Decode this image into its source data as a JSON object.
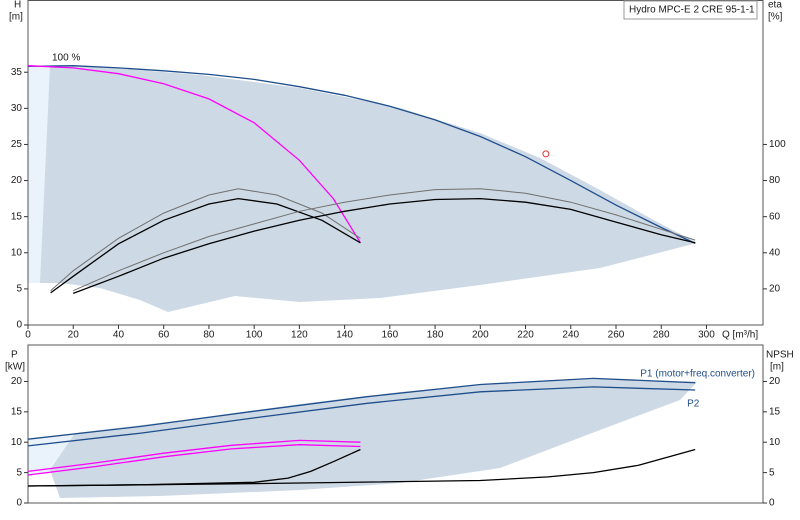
{
  "chart_data": [
    {
      "type": "line",
      "title": "Hydro MPC-E 2 CRE 95-1-1",
      "x_label": "Q [m³/h]",
      "y_label": "H",
      "y_unit": "[m]",
      "y2_label": "eta",
      "y2_unit": "[%]",
      "xlim": [
        0,
        325
      ],
      "xticks": [
        0,
        20,
        40,
        60,
        80,
        100,
        120,
        140,
        160,
        180,
        200,
        220,
        240,
        260,
        280,
        300
      ],
      "ylim": [
        0,
        45
      ],
      "yticks": [
        0,
        5,
        10,
        15,
        20,
        25,
        30,
        35
      ],
      "y2lim": [
        0,
        180
      ],
      "y2ticks": [
        20,
        40,
        60,
        80,
        100
      ],
      "grid": false,
      "annotations": [
        "100 %"
      ],
      "markers": [
        {
          "x": 229,
          "y": 23.7,
          "color": "#e03030"
        }
      ],
      "series": [
        {
          "color": "#1f4e8c",
          "x": [
            0,
            20,
            40,
            60,
            80,
            100,
            120,
            140,
            160,
            180,
            200,
            220,
            240,
            260,
            280,
            295
          ],
          "values": [
            35.8,
            35.9,
            35.6,
            35.2,
            34.7,
            34.0,
            33.0,
            31.8,
            30.3,
            28.4,
            26.1,
            23.3,
            20.0,
            16.6,
            13.5,
            11.3
          ]
        },
        {
          "color": "#ff00ff",
          "x": [
            0,
            20,
            40,
            60,
            80,
            100,
            120,
            135,
            147
          ],
          "values": [
            35.9,
            35.6,
            34.8,
            33.4,
            31.3,
            28.0,
            22.8,
            17.5,
            11.4
          ]
        },
        {
          "color": "#707070",
          "axis": "y2",
          "x": [
            10,
            20,
            40,
            60,
            80,
            93,
            110,
            130,
            147
          ],
          "values": [
            19,
            30,
            48,
            62,
            72,
            75.5,
            72,
            62,
            48
          ]
        },
        {
          "color": "#000000",
          "axis": "y2",
          "x": [
            10,
            20,
            40,
            60,
            80,
            93,
            110,
            130,
            147
          ],
          "values": [
            17.8,
            27,
            45,
            58,
            67,
            70,
            67,
            58,
            45.5
          ]
        },
        {
          "color": "#707070",
          "axis": "y2",
          "x": [
            20,
            40,
            60,
            80,
            100,
            120,
            140,
            160,
            180,
            200,
            220,
            240,
            260,
            280,
            295
          ],
          "values": [
            19,
            30,
            40,
            49,
            56,
            63,
            68,
            72,
            75,
            75.5,
            73,
            68,
            61,
            53,
            47
          ]
        },
        {
          "color": "#000000",
          "axis": "y2",
          "x": [
            20,
            40,
            60,
            80,
            100,
            120,
            140,
            160,
            180,
            200,
            220,
            240,
            260,
            280,
            295
          ],
          "values": [
            17.5,
            27,
            37,
            45,
            52,
            58,
            63,
            67,
            69.5,
            70,
            68,
            64,
            57,
            50,
            45.5
          ]
        }
      ]
    },
    {
      "type": "line",
      "y_label": "P",
      "y_unit": "[kW]",
      "y2_label": "NPSH",
      "y2_unit": "[m]",
      "xlim": [
        0,
        325
      ],
      "ylim": [
        0,
        26
      ],
      "yticks": [
        0,
        5,
        10,
        15,
        20
      ],
      "y2lim": [
        0,
        26
      ],
      "y2ticks": [
        0,
        5,
        10,
        15,
        20
      ],
      "grid": false,
      "series": [
        {
          "name": "P1 (motor+freq.converter)",
          "color": "#1f4e8c",
          "x": [
            0,
            50,
            100,
            150,
            200,
            250,
            295
          ],
          "values": [
            10.5,
            12.6,
            15.1,
            17.5,
            19.5,
            20.5,
            19.8
          ]
        },
        {
          "name": "P2",
          "color": "#1f4e8c",
          "x": [
            0,
            50,
            100,
            150,
            200,
            250,
            295
          ],
          "values": [
            9.4,
            11.5,
            14.0,
            16.4,
            18.3,
            19.1,
            18.6
          ]
        },
        {
          "color": "#ff00ff",
          "x": [
            0,
            30,
            60,
            90,
            120,
            147
          ],
          "values": [
            5.2,
            6.6,
            8.2,
            9.5,
            10.3,
            10.0
          ]
        },
        {
          "color": "#ff00ff",
          "x": [
            0,
            30,
            60,
            90,
            120,
            147
          ],
          "values": [
            4.6,
            6.0,
            7.6,
            8.9,
            9.6,
            9.3
          ]
        },
        {
          "color": "#000000",
          "axis": "y2",
          "x": [
            0,
            50,
            100,
            115,
            125,
            135,
            147
          ],
          "values": [
            2.8,
            3.0,
            3.4,
            4.1,
            5.2,
            6.8,
            8.8
          ]
        },
        {
          "color": "#000000",
          "axis": "y2",
          "x": [
            0,
            100,
            200,
            230,
            250,
            270,
            295
          ],
          "values": [
            2.8,
            3.2,
            3.7,
            4.3,
            5.0,
            6.2,
            8.8
          ]
        }
      ]
    }
  ]
}
